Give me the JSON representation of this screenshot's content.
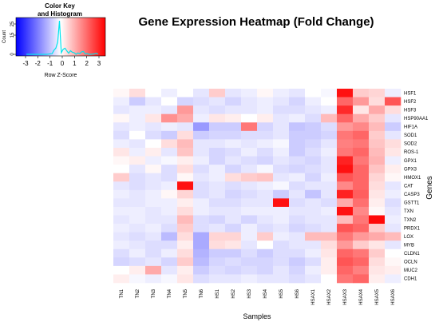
{
  "chart_data": {
    "type": "heatmap",
    "title": "Gene Expression Heatmap (Fold Change)",
    "xlabel": "Samples",
    "ylabel": "Genes",
    "columns": [
      "TN1",
      "TN2",
      "TN3",
      "TN4",
      "TN5",
      "TN6",
      "HS1",
      "HS2",
      "HS3",
      "HS4",
      "HS5",
      "HS6",
      "HSAX1",
      "HSAX2",
      "HSAX3",
      "HSAX4",
      "HSAX5",
      "HSAX6"
    ],
    "rows": [
      "HSF1",
      "HSF2",
      "HSF3",
      "HSP90AA1",
      "HIF1A",
      "SOD1",
      "SOD2",
      "ROS-1",
      "GPX1",
      "GPX3",
      "HMOX1",
      "CAT",
      "CASP3",
      "GSTT1",
      "TXN",
      "TXN2",
      "PRDX1",
      "LOX",
      "MYB",
      "CLDN1",
      "OCLN",
      "MUC2",
      "CDH1"
    ],
    "values": [
      [
        0.1,
        0.4,
        0.0,
        -0.2,
        0.0,
        -0.3,
        0.6,
        -0.3,
        -0.2,
        0.1,
        -0.2,
        -0.3,
        0.0,
        -0.1,
        2.8,
        0.6,
        0.5,
        -0.2
      ],
      [
        -0.2,
        -0.6,
        -0.3,
        0.0,
        -0.5,
        -0.4,
        -0.3,
        -0.5,
        -0.3,
        -0.2,
        -0.3,
        -0.5,
        -0.2,
        0.0,
        1.8,
        1.2,
        0.4,
        2.0
      ],
      [
        -0.3,
        -0.2,
        -0.2,
        -0.3,
        1.2,
        -0.3,
        -0.4,
        -0.3,
        -0.3,
        -0.2,
        -0.4,
        -0.4,
        -0.3,
        -0.2,
        2.5,
        0.3,
        1.0,
        0.4
      ],
      [
        0.1,
        -0.2,
        0.3,
        1.3,
        1.0,
        -0.2,
        0.3,
        0.2,
        0.0,
        0.2,
        -0.3,
        -0.2,
        -0.4,
        0.8,
        1.8,
        1.0,
        0.6,
        -0.3
      ],
      [
        -0.3,
        -0.2,
        -0.3,
        -0.2,
        -0.3,
        -1.2,
        -0.6,
        -0.6,
        1.6,
        -0.5,
        -0.3,
        -0.7,
        -0.6,
        -0.4,
        1.2,
        1.4,
        0.8,
        -0.6
      ],
      [
        -0.4,
        0.0,
        -0.4,
        -0.6,
        0.4,
        -0.6,
        -0.5,
        -0.5,
        -0.4,
        -0.4,
        -0.3,
        -0.6,
        -0.6,
        -0.5,
        1.6,
        1.8,
        0.6,
        -0.3
      ],
      [
        -0.2,
        -0.3,
        0.0,
        0.4,
        0.8,
        -0.3,
        -0.3,
        -0.2,
        -0.3,
        -0.2,
        -0.1,
        -0.6,
        -0.5,
        -0.3,
        1.5,
        1.6,
        0.7,
        0.4
      ],
      [
        0.3,
        -0.2,
        0.2,
        -0.3,
        0.7,
        -0.3,
        -0.5,
        -0.4,
        -0.2,
        -0.4,
        -0.2,
        -0.6,
        -0.4,
        -0.2,
        1.6,
        1.8,
        0.8,
        0.3
      ],
      [
        0.1,
        0.2,
        -0.2,
        -0.1,
        0.2,
        -0.2,
        -0.5,
        -0.3,
        -0.4,
        -0.5,
        -0.3,
        -0.4,
        -0.5,
        -0.3,
        2.6,
        1.6,
        0.9,
        -0.2
      ],
      [
        0.0,
        -0.3,
        0.1,
        -0.4,
        0.4,
        -0.4,
        -0.2,
        -0.5,
        -0.3,
        -0.1,
        -0.4,
        -0.5,
        -0.4,
        -0.3,
        2.8,
        1.8,
        0.7,
        0.2
      ],
      [
        0.6,
        -0.4,
        -0.3,
        -0.4,
        0.1,
        -0.3,
        -0.2,
        0.4,
        0.6,
        0.7,
        -0.3,
        -0.2,
        -0.5,
        -0.2,
        2.0,
        1.8,
        0.5,
        0.1
      ],
      [
        -0.3,
        -0.4,
        -0.3,
        -0.2,
        2.8,
        -0.4,
        -0.3,
        -0.4,
        -0.3,
        -0.2,
        -0.1,
        -0.4,
        -0.3,
        -0.3,
        1.4,
        1.8,
        0.4,
        -0.3
      ],
      [
        -0.2,
        -0.3,
        -0.2,
        0.1,
        0.5,
        -0.4,
        -0.3,
        -0.5,
        -0.4,
        -0.3,
        -0.6,
        -0.3,
        -0.7,
        -0.3,
        2.6,
        1.9,
        0.3,
        -0.2
      ],
      [
        -0.3,
        -0.3,
        -0.2,
        -0.2,
        0.2,
        -0.2,
        -0.4,
        -0.4,
        -0.3,
        -0.3,
        2.8,
        -0.4,
        -0.3,
        -0.4,
        1.0,
        1.7,
        0.2,
        -0.4
      ],
      [
        -0.2,
        -0.2,
        -0.3,
        -0.2,
        0.4,
        -0.2,
        -0.3,
        -0.3,
        -0.2,
        -0.2,
        -0.2,
        -0.3,
        -0.3,
        -0.2,
        2.8,
        1.4,
        0.1,
        -0.3
      ],
      [
        -0.3,
        -0.2,
        -0.3,
        -0.3,
        0.8,
        -0.4,
        -0.5,
        -0.3,
        -0.5,
        -0.3,
        -0.2,
        -0.4,
        -0.3,
        -0.3,
        0.8,
        1.6,
        2.9,
        -0.2
      ],
      [
        -0.2,
        -0.3,
        -0.2,
        -0.4,
        0.6,
        -0.4,
        -0.3,
        -0.5,
        -0.2,
        -0.4,
        -0.3,
        -0.5,
        -0.4,
        -0.3,
        2.0,
        1.8,
        0.6,
        -0.3
      ],
      [
        -0.3,
        -0.4,
        -0.3,
        -0.8,
        0.4,
        -1.0,
        0.5,
        0.5,
        -0.2,
        0.6,
        -0.2,
        -0.3,
        0.8,
        0.8,
        1.6,
        1.2,
        1.0,
        0.8
      ],
      [
        -0.2,
        -0.3,
        -0.4,
        -0.4,
        0.2,
        -1.0,
        0.4,
        0.3,
        -0.3,
        0.0,
        -0.4,
        -0.3,
        -0.3,
        0.4,
        1.2,
        0.6,
        0.3,
        -0.3
      ],
      [
        -0.4,
        -0.2,
        -0.4,
        -0.2,
        0.4,
        -0.9,
        -0.6,
        -0.6,
        -0.4,
        -0.6,
        -0.4,
        -0.4,
        -0.2,
        0.3,
        1.8,
        1.6,
        0.6,
        0.0
      ],
      [
        -0.5,
        -0.4,
        -0.3,
        -0.5,
        0.6,
        -0.8,
        -0.5,
        -0.4,
        -0.5,
        -0.5,
        -0.4,
        -0.6,
        -0.4,
        0.2,
        2.0,
        1.8,
        0.4,
        0.1
      ],
      [
        0.0,
        0.2,
        1.0,
        -0.3,
        0.2,
        -0.6,
        -0.4,
        -0.5,
        -0.4,
        -0.5,
        -0.3,
        -0.5,
        -0.2,
        0.2,
        1.8,
        1.5,
        0.3,
        0.2
      ],
      [
        0.2,
        -0.1,
        -0.2,
        -0.1,
        0.3,
        -0.4,
        -0.3,
        -0.3,
        -0.2,
        -0.3,
        -0.3,
        -0.4,
        -0.3,
        0.0,
        1.6,
        1.8,
        0.2,
        -0.2
      ]
    ],
    "color_key": {
      "title_line1": "Color Key",
      "title_line2": "and Histogram",
      "xlabel": "Row Z-Score",
      "ylabel": "Count",
      "x_ticks": [
        "-3",
        "-2",
        "-1",
        "0",
        "1",
        "2",
        "3"
      ],
      "y_ticks": [
        "0",
        "15",
        "25"
      ],
      "low_color": "#0000ff",
      "mid_color": "#ffffff",
      "high_color": "#ff0000",
      "histogram_color": "#00e5ee"
    }
  }
}
